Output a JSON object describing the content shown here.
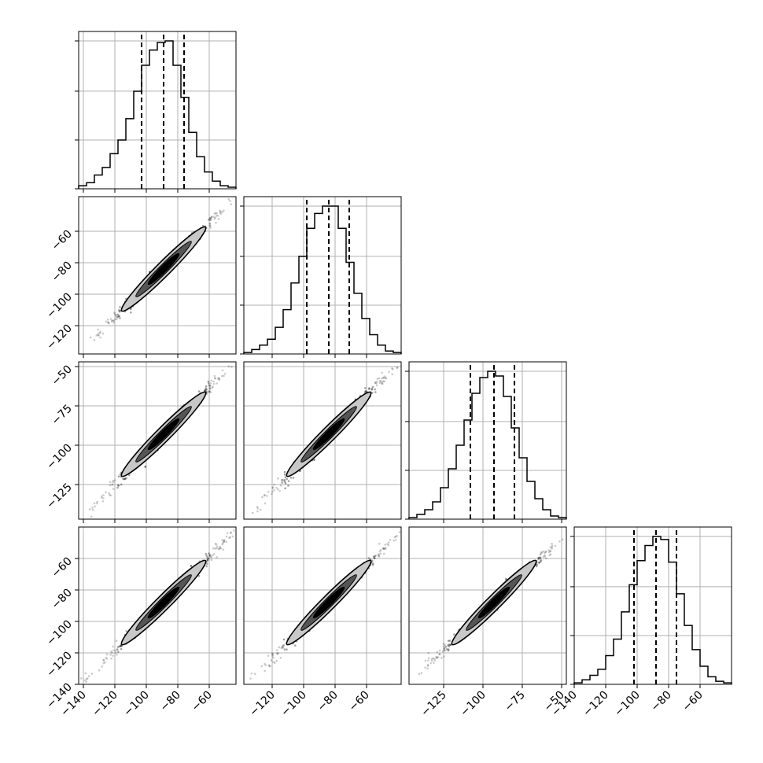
{
  "chart_data": {
    "type": "corner",
    "title": "",
    "n_params": 4,
    "grid": true,
    "colors": {
      "line": "#000000",
      "grid": "#b0b0b0",
      "axes": "#000000",
      "samples": "#333333"
    },
    "params": [
      {
        "label": "",
        "range": [
          -143,
          -43
        ],
        "q16": -103,
        "q50": -89,
        "q84": -76,
        "ticks": [
          -140,
          -120,
          -100,
          -80,
          -60
        ]
      },
      {
        "label": "",
        "range": [
          -138,
          -38
        ],
        "q16": -98,
        "q50": -84,
        "ticks": [
          -120,
          -100,
          -80,
          -60
        ],
        "q84": -71
      },
      {
        "label": "",
        "range": [
          -147,
          -47
        ],
        "q16": -108,
        "q50": -93,
        "q84": -80,
        "ticks": [
          -125,
          -100,
          -75,
          -50
        ]
      },
      {
        "label": "",
        "range": [
          -140,
          -40
        ],
        "q16": -102,
        "q50": -88,
        "q84": -75,
        "ticks": [
          -140,
          -120,
          -100,
          -80,
          -60
        ]
      }
    ],
    "histograms": [
      {
        "counts": [
          2,
          4,
          9,
          14,
          23,
          32,
          46,
          64,
          81,
          91,
          96,
          97,
          81,
          60,
          37,
          21,
          11,
          5,
          2,
          1
        ]
      },
      {
        "counts": [
          1,
          3,
          6,
          10,
          18,
          30,
          48,
          66,
          85,
          95,
          100,
          100,
          85,
          62,
          41,
          24,
          13,
          6,
          2,
          1
        ]
      },
      {
        "counts": [
          1,
          3,
          6,
          11,
          20,
          32,
          47,
          63,
          80,
          90,
          94,
          91,
          78,
          58,
          39,
          24,
          13,
          6,
          2,
          1
        ]
      },
      {
        "counts": [
          1,
          3,
          6,
          10,
          19,
          30,
          48,
          66,
          82,
          92,
          98,
          96,
          81,
          60,
          39,
          23,
          12,
          5,
          2,
          1
        ]
      }
    ],
    "correlation": 0.985
  }
}
